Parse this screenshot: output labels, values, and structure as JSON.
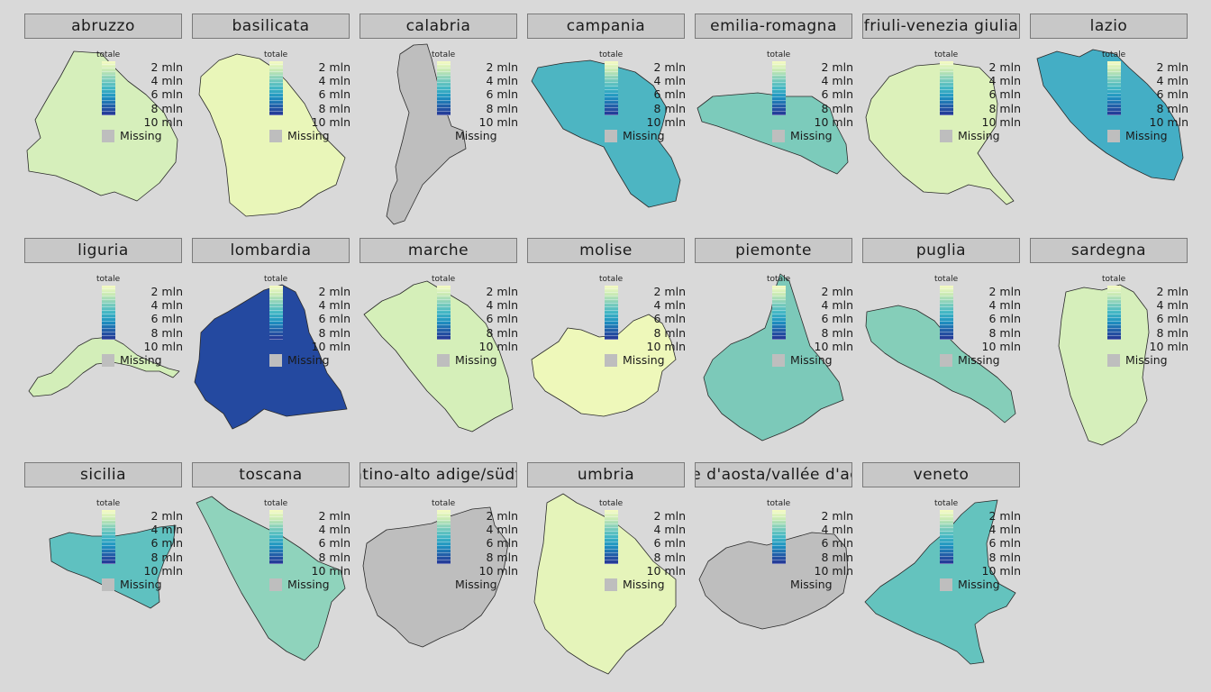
{
  "legend": {
    "title": "totale",
    "labels": [
      "2 mln",
      "4 mln",
      "6 mln",
      "8 mln",
      "10 mln"
    ],
    "missing_label": "Missing",
    "color_scale": [
      "#f7fcc4",
      "#c7e9b4",
      "#7fcdbb",
      "#41b6c4",
      "#1d91c0",
      "#225ea8",
      "#253494"
    ],
    "missing_color": "#bebebe"
  },
  "panels": [
    {
      "name": "abruzzo",
      "fill": "#d6efbb"
    },
    {
      "name": "basilicata",
      "fill": "#e9f6b9"
    },
    {
      "name": "calabria",
      "fill": "#bebebe"
    },
    {
      "name": "campania",
      "fill": "#4db5c2"
    },
    {
      "name": "emilia-romagna",
      "fill": "#7ccbbb"
    },
    {
      "name": "friuli-venezia giulia",
      "fill": "#dcf1ba"
    },
    {
      "name": "lazio",
      "fill": "#44aec5"
    },
    {
      "name": "liguria",
      "fill": "#d3eeb9"
    },
    {
      "name": "lombardia",
      "fill": "#2449a0"
    },
    {
      "name": "marche",
      "fill": "#d5efb9"
    },
    {
      "name": "molise",
      "fill": "#eef8ba"
    },
    {
      "name": "piemonte",
      "fill": "#7cc9b9"
    },
    {
      "name": "puglia",
      "fill": "#85ceb9"
    },
    {
      "name": "sardegna",
      "fill": "#d6efbb"
    },
    {
      "name": "sicilia",
      "fill": "#5fc1c0"
    },
    {
      "name": "toscana",
      "fill": "#8fd3bc"
    },
    {
      "name": "trentino-alto adige/südtirol",
      "fill": "#bebebe"
    },
    {
      "name": "umbria",
      "fill": "#e5f4ba"
    },
    {
      "name": "valle d'aosta/vallée d'aoste",
      "fill": "#bebebe"
    },
    {
      "name": "veneto",
      "fill": "#64c3be"
    }
  ]
}
